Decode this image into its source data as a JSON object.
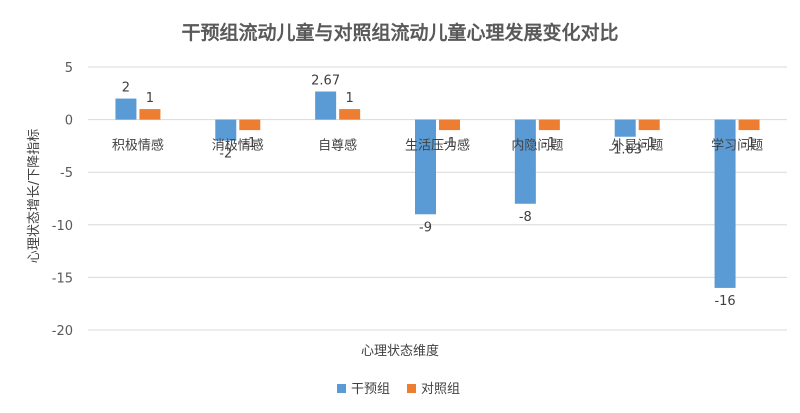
{
  "chart_data": {
    "type": "bar",
    "title": "干预组流动儿童与对照组流动儿童心理发展变化对比",
    "xlabel": "心理状态维度",
    "ylabel": "心理状态增长/下降指标",
    "categories": [
      "积极情感",
      "消极情感",
      "自尊感",
      "生活压力感",
      "内隐问题",
      "外显问题",
      "学习问题"
    ],
    "series": [
      {
        "name": "干预组",
        "color": "#5b9bd5",
        "values": [
          2,
          -2,
          2.67,
          -9,
          -8,
          -1.63,
          -16
        ],
        "labels": [
          "2",
          "-2",
          "2.67",
          "-9",
          "-8",
          "-1.63",
          "-16"
        ]
      },
      {
        "name": "对照组",
        "color": "#ed7d31",
        "values": [
          1,
          -1,
          1,
          -1,
          -1,
          -1,
          -1
        ],
        "labels": [
          "1",
          "-1",
          "1",
          "-1",
          "-1",
          "-1",
          "-1"
        ]
      }
    ],
    "ylim": [
      -20,
      5
    ],
    "yticks": [
      5,
      0,
      -5,
      -10,
      -15,
      -20
    ],
    "grid": true,
    "legend_position": "bottom"
  }
}
